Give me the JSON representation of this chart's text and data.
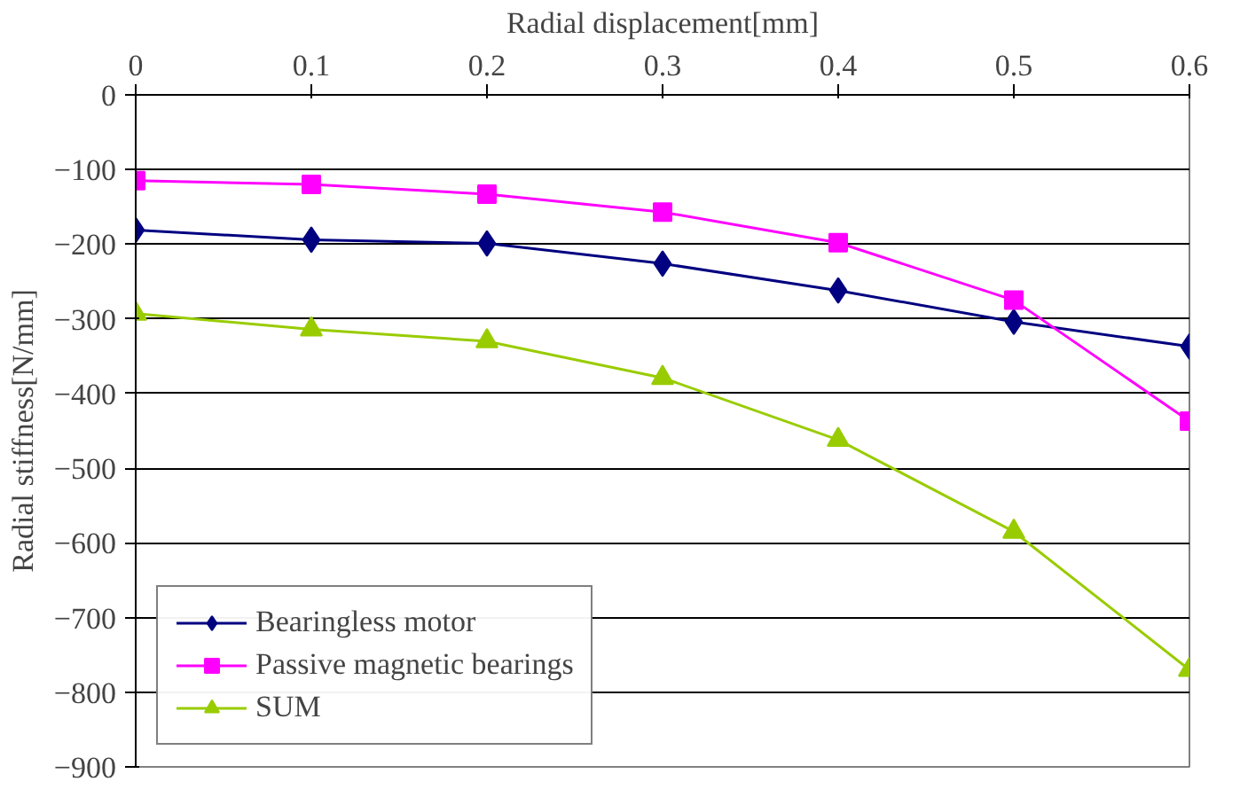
{
  "chart_data": {
    "type": "line",
    "xlabel": "Radial displacement[mm]",
    "ylabel": "Radial stiffness[N/mm]",
    "x": [
      0,
      0.1,
      0.2,
      0.3,
      0.4,
      0.5,
      0.6
    ],
    "xlim": [
      0,
      0.6
    ],
    "xticks": [
      0,
      0.1,
      0.2,
      0.3,
      0.4,
      0.5,
      0.6
    ],
    "ylim": [
      -900,
      0
    ],
    "yticks": [
      0,
      -100,
      -200,
      -300,
      -400,
      -500,
      -600,
      -700,
      -800,
      -900
    ],
    "grid": "y",
    "legend": "bottom left",
    "line_style": "solid",
    "series": [
      {
        "name": "Bearingless motor",
        "color": "#000080",
        "marker": "diamond",
        "values": [
          -181,
          -194,
          -199,
          -226,
          -262,
          -304,
          -337
        ]
      },
      {
        "name": "Passive magnetic bearings",
        "color": "#ff00ff",
        "marker": "square",
        "values": [
          -115,
          -120,
          -133,
          -157,
          -198,
          -275,
          -437
        ]
      },
      {
        "name": "SUM",
        "color": "#99cc00",
        "marker": "triangle",
        "values": [
          -293,
          -314,
          -330,
          -379,
          -462,
          -585,
          -770
        ]
      }
    ]
  }
}
